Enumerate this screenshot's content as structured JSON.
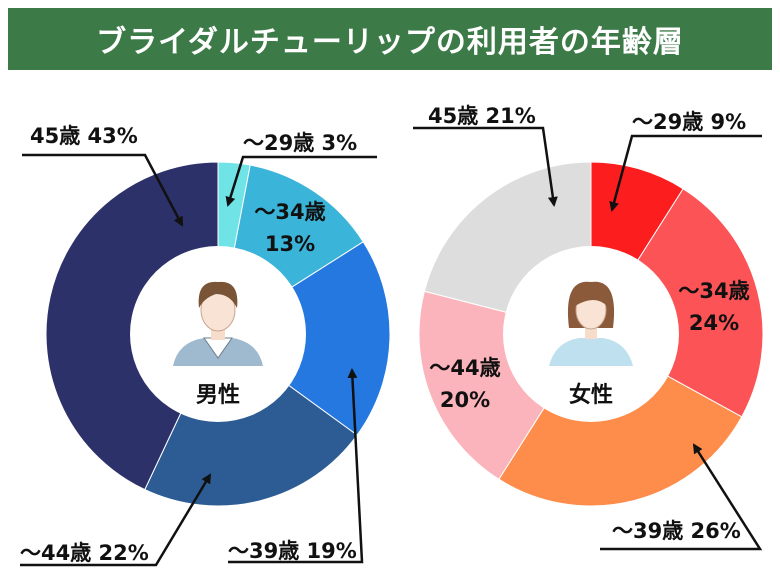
{
  "title": "ブライダルチューリップの利用者の年齢層",
  "chart_data": [
    {
      "type": "pie",
      "center_label": "男性",
      "slices": [
        {
          "label_top": "〜29歳",
          "label_bottom": "3%",
          "value": 3,
          "color": "#6fe3e6"
        },
        {
          "label_top": "〜34歳",
          "label_bottom": "13%",
          "value": 13,
          "color": "#3ab4d8"
        },
        {
          "label_top": "〜39歳",
          "label_bottom": "19%",
          "value": 19,
          "color": "#2478e0"
        },
        {
          "label_top": "〜44歳",
          "label_bottom": "22%",
          "value": 22,
          "color": "#2d5c95"
        },
        {
          "label_top": "45歳",
          "label_bottom": "43%",
          "value": 43,
          "color": "#2d316a"
        }
      ]
    },
    {
      "type": "pie",
      "center_label": "女性",
      "slices": [
        {
          "label_top": "〜29歳",
          "label_bottom": "9%",
          "value": 9,
          "color": "#fc1d1e"
        },
        {
          "label_top": "〜34歳",
          "label_bottom": "24%",
          "value": 24,
          "color": "#fc5356"
        },
        {
          "label_top": "〜39歳",
          "label_bottom": "26%",
          "value": 26,
          "color": "#fe8c4a"
        },
        {
          "label_top": "〜44歳",
          "label_bottom": "20%",
          "value": 20,
          "color": "#fbb4bb"
        },
        {
          "label_top": "45歳",
          "label_bottom": "21%",
          "value": 21,
          "color": "#dddddd"
        }
      ]
    }
  ]
}
